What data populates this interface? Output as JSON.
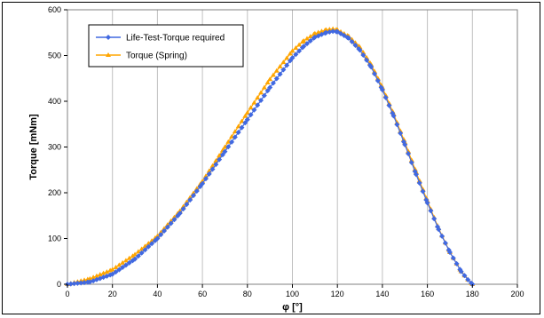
{
  "chart_data": {
    "type": "line",
    "title": "",
    "xlabel": "φ [°]",
    "ylabel": "Torque [mNm]",
    "xlim": [
      0,
      200
    ],
    "ylim": [
      0,
      600
    ],
    "xticks": [
      "0",
      "20",
      "40",
      "60",
      "80",
      "100",
      "120",
      "140",
      "160",
      "180",
      "200"
    ],
    "yticks": [
      "0",
      "100",
      "200",
      "300",
      "400",
      "500",
      "600"
    ],
    "grid": "vertical-major",
    "legend_position": "top-left",
    "plot_background": "#ffffff",
    "series": [
      {
        "name": "Life-Test-Torque required",
        "color": "#4169e1",
        "marker": "diamond",
        "x": [
          0,
          10,
          20,
          30,
          40,
          50,
          60,
          70,
          80,
          90,
          100,
          105,
          110,
          115,
          118,
          120,
          125,
          130,
          135,
          140,
          145,
          150,
          155,
          160,
          165,
          170,
          175,
          178,
          180
        ],
        "y": [
          0,
          5,
          22,
          55,
          100,
          155,
          220,
          290,
          360,
          430,
          495,
          520,
          540,
          550,
          553,
          552,
          538,
          512,
          475,
          425,
          368,
          305,
          240,
          178,
          120,
          70,
          28,
          10,
          0
        ]
      },
      {
        "name": "Torque (Spring)",
        "color": "#ffa500",
        "marker": "triangle",
        "x": [
          0,
          10,
          20,
          30,
          40,
          50,
          60,
          70,
          80,
          90,
          100,
          105,
          110,
          115,
          118,
          120,
          125,
          130,
          135,
          140,
          145,
          150,
          155,
          160,
          165,
          170,
          175,
          178,
          180
        ],
        "y": [
          0,
          12,
          32,
          65,
          105,
          160,
          225,
          300,
          375,
          448,
          510,
          532,
          548,
          556,
          558,
          556,
          542,
          518,
          480,
          430,
          372,
          310,
          245,
          182,
          122,
          70,
          28,
          10,
          0
        ]
      }
    ]
  }
}
